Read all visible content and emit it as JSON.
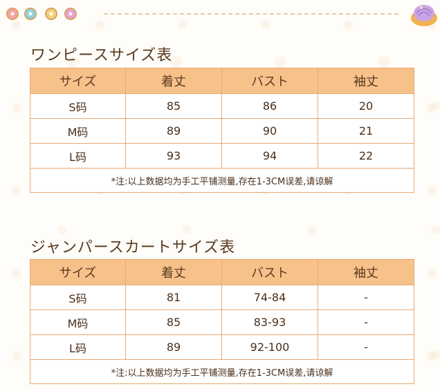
{
  "table1": {
    "title": "ワンピースサイズ表",
    "headers": [
      "サイズ",
      "着丈",
      "バスト",
      "袖丈"
    ],
    "rows": [
      [
        "S码",
        "85",
        "86",
        "20"
      ],
      [
        "M码",
        "89",
        "90",
        "21"
      ],
      [
        "L码",
        "93",
        "94",
        "22"
      ]
    ],
    "note": "*注:以上数据均为手工平铺测量,存在1-3CM误差,请谅解"
  },
  "table2": {
    "title": "ジャンパースカートサイズ表",
    "headers": [
      "サイズ",
      "着丈",
      "バスト",
      "袖丈"
    ],
    "rows": [
      [
        "S码",
        "81",
        "74-84",
        "-"
      ],
      [
        "M码",
        "85",
        "83-93",
        "-"
      ],
      [
        "L码",
        "89",
        "92-100",
        "-"
      ]
    ],
    "note": "*注:以上数据均为手工平铺测量,存在1-3CM误差,请谅解"
  },
  "colors": {
    "header_bg": "#f7c18a",
    "border": "#e7a873",
    "text": "#5a3a1f"
  },
  "icons": [
    "donut-icon",
    "donut-icon",
    "donut-icon",
    "donut-icon",
    "swirl-pastry-icon"
  ]
}
